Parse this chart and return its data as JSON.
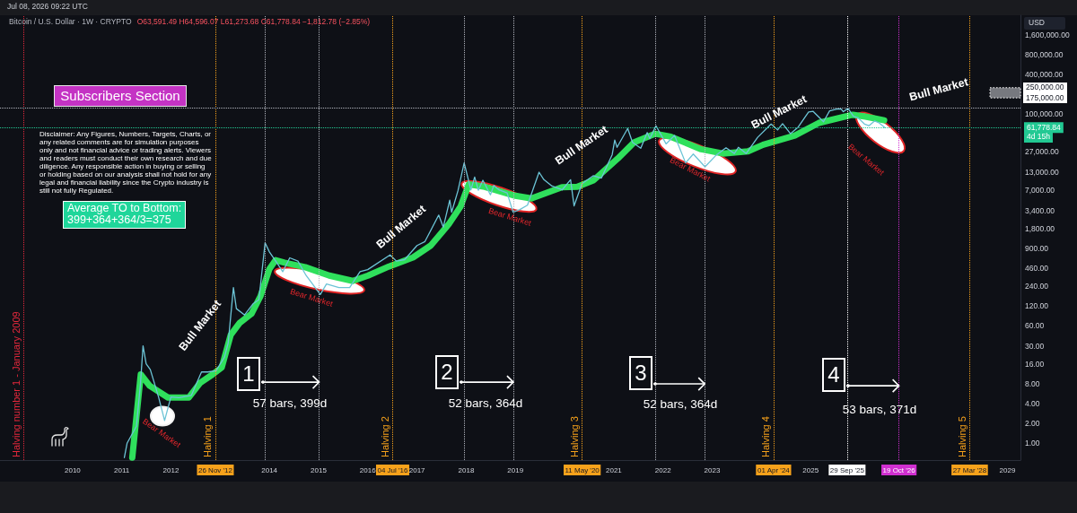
{
  "chart_data": {
    "type": "line",
    "title": "Bitcoin / U.S. Dollar · 1W · CRYPTO",
    "ylabel": "USD",
    "log": "y",
    "annotations": [
      "Jul 08, 2026 09:22 UTC",
      "O63,591.49 H64,596.07 L61,273.68 C61,778.84 −1,812.78 (−2.85%)",
      "Subscribers Section",
      "Disclaimer: Any Figures, Numbers, Targets, Charts, or any related comments are for simulation purposes only and not financial advice or trading alerts. Viewers and readers must conduct their own research and due diligence. Any responsible action in buying or selling or holding based on our analysis shall not hold for any legal and financial liability since the Crypto industry is still not fully Regulated.",
      "Average TO to Bottom:\n399+364+364/3=375",
      "4d 15h",
      {
        "text": "1",
        "x": "2015-01-05",
        "y": 8.4
      },
      {
        "text": "2",
        "x": "2018-12-17",
        "y": 8.4
      },
      {
        "text": "3",
        "x": "2022-11-07",
        "y": 7.9
      },
      {
        "text": "4",
        "x": "2026-10-19",
        "y": 7.4
      },
      "57 bars, 399d",
      "52 bars, 364d",
      "52 bars, 364d",
      "53 bars, 371d",
      "Bull Market",
      "Bull Market",
      "Bull Market",
      "Bull Market",
      "Bull Market",
      "Bear Market",
      "Bear Market",
      "Bear Market",
      "Bear Market",
      "Bear Market",
      {
        "text": "250,000.00",
        "x": "2028-12-16",
        "y": 250000
      },
      {
        "text": "175,000.00",
        "x": "2028-12-16",
        "y": 175000
      }
    ],
    "series": [
      {
        "color": "#2fe05c",
        "x": [
          "2011-03-20",
          "2011-05-22",
          "2011-07-27",
          "2011-12-10",
          "2012-05-12",
          "2012-08-05",
          "2012-11-05",
          "2013-01-12",
          "2013-03-20",
          "2013-05-26",
          "2013-08-21",
          "2013-10-27",
          "2014-01-01",
          "2014-02-16",
          "2014-04-23",
          "2014-09-24",
          "2015-03-21",
          "2015-09-12",
          "2016-01-04",
          "2016-06-06",
          "2016-12-03",
          "2017-04-13",
          "2017-08-24",
          "2017-11-20",
          "2018-01-20",
          "2018-05-19",
          "2019-01-01",
          "2019-04-30",
          "2019-12-13",
          "2020-04-05",
          "2020-08-04",
          "2021-01-31",
          "2021-05-31",
          "2021-11-06",
          "2022-02-28",
          "2022-10-12",
          "2023-03-21",
          "2023-09-24",
          "2024-01-15",
          "2024-09-06",
          "2025-03-04",
          "2025-11-10",
          "2026-02-12",
          "2026-07-01"
        ],
        "values": [
          0.6,
          11,
          7.4,
          4.9,
          4.9,
          8.2,
          11,
          14,
          44,
          67,
          92,
          170,
          440,
          600,
          550,
          470,
          350,
          290,
          350,
          480,
          660,
          1000,
          2100,
          3900,
          8500,
          7800,
          5700,
          5200,
          7700,
          7800,
          9800,
          21000,
          37000,
          50000,
          45000,
          29000,
          25000,
          27000,
          34000,
          47000,
          73000,
          97000,
          91000,
          80000
        ]
      },
      {
        "color": "#6cc4d6",
        "x": [
          "2011-01-20",
          "2011-02-10",
          "2011-04-20",
          "2011-05-20",
          "2011-06-08",
          "2011-07-01",
          "2011-08-01",
          "2011-09-01",
          "2011-10-01",
          "2011-11-15",
          "2012-01-01",
          "2012-03-01",
          "2012-06-01",
          "2012-08-15",
          "2012-10-01",
          "2012-12-01",
          "2013-02-01",
          "2013-03-01",
          "2013-04-09",
          "2013-05-01",
          "2013-07-01",
          "2013-09-01",
          "2013-10-15",
          "2013-11-30",
          "2014-01-01",
          "2014-02-25",
          "2014-04-10",
          "2014-06-01",
          "2014-08-01",
          "2014-10-01",
          "2015-01-14",
          "2015-03-01",
          "2015-06-01",
          "2015-08-20",
          "2015-11-05",
          "2016-01-01",
          "2016-06-15",
          "2016-08-01",
          "2016-10-01",
          "2017-01-01",
          "2017-03-01",
          "2017-06-11",
          "2017-07-15",
          "2017-09-01",
          "2017-09-15",
          "2017-11-01",
          "2017-12-17",
          "2018-02-05",
          "2018-03-05",
          "2018-04-01",
          "2018-05-05",
          "2018-06-30",
          "2018-07-25",
          "2018-09-01",
          "2018-11-01",
          "2018-12-15",
          "2019-02-01",
          "2019-04-01",
          "2019-06-26",
          "2019-08-01",
          "2019-09-30",
          "2019-12-15",
          "2020-02-15",
          "2020-03-12",
          "2020-05-10",
          "2020-08-01",
          "2020-10-01",
          "2020-12-20",
          "2021-01-08",
          "2021-01-25",
          "2021-04-14",
          "2021-05-20",
          "2021-07-20",
          "2021-09-06",
          "2021-09-25",
          "2021-11-10",
          "2022-01-24",
          "2022-03-28",
          "2022-06-18",
          "2022-08-14",
          "2022-11-09",
          "2023-01-30",
          "2023-04-14",
          "2023-06-15",
          "2023-07-15",
          "2023-09-11",
          "2023-12-05",
          "2024-03-14",
          "2024-05-01",
          "2024-06-07",
          "2024-08-05",
          "2024-10-01",
          "2024-12-17",
          "2025-01-20",
          "2025-04-07",
          "2025-05-22",
          "2025-07-14",
          "2025-08-14",
          "2025-09-01",
          "2025-10-06",
          "2025-11-15",
          "2025-12-20",
          "2026-02-05",
          "2026-03-10",
          "2026-04-20",
          "2026-05-20",
          "2026-06-20",
          "2026-07-06"
        ],
        "values": [
          0.6,
          1,
          1.8,
          8,
          30,
          16,
          13,
          8,
          5,
          2.2,
          5,
          4.9,
          5.3,
          12,
          12,
          12.5,
          20,
          33,
          230,
          110,
          88,
          130,
          150,
          1100,
          800,
          550,
          400,
          650,
          580,
          350,
          180,
          260,
          230,
          230,
          400,
          430,
          720,
          580,
          610,
          1000,
          1150,
          2900,
          1900,
          4900,
          3200,
          6800,
          18000,
          7000,
          11000,
          6900,
          9800,
          5900,
          8200,
          7000,
          6300,
          3200,
          3500,
          4100,
          13000,
          10000,
          8000,
          7000,
          10000,
          4000,
          8700,
          11500,
          10600,
          24000,
          40000,
          31000,
          60000,
          37000,
          30000,
          52000,
          42000,
          66000,
          35000,
          47000,
          18000,
          24500,
          15700,
          23500,
          30500,
          25000,
          31000,
          25000,
          44000,
          70000,
          57000,
          71000,
          50000,
          63000,
          107000,
          109000,
          76000,
          111000,
          118000,
          119000,
          108000,
          121000,
          92000,
          87000,
          70000,
          66000,
          78000,
          74000,
          66000,
          61778.84
        ]
      },
      {
        "type": "bar",
        "color": "#77797f",
        "x": [
          "2028-12-16"
        ],
        "base": [
          175000
        ],
        "values": [
          75000
        ]
      }
    ],
    "xlim": [
      "2008-07-11",
      "2029-04-08"
    ],
    "xticks": [
      "2010",
      "2011",
      "2012",
      {
        "value": "2012-11-26",
        "label": "26 Nov '12"
      },
      "2014",
      "2015",
      "2016",
      {
        "value": "2016-07-04",
        "label": "04 Jul '16"
      },
      "2017",
      "2018",
      "2019",
      {
        "value": "2020-05-11",
        "label": "11 May '20"
      },
      "2021",
      "2022",
      "2023",
      {
        "value": "2024-04-01",
        "label": "01 Apr '24"
      },
      "2025",
      {
        "value": "2025-09-29",
        "label": "29 Sep '25"
      },
      {
        "value": "2026-10-19",
        "label": "19 Oct '26"
      },
      {
        "value": "2028-03-27",
        "label": "27 Mar '28"
      },
      "2029"
    ],
    "ylim": [
      0.55,
      3150000
    ],
    "yticks": [
      {
        "value": 1,
        "label": "1.00"
      },
      {
        "value": 2,
        "label": "2.00"
      },
      {
        "value": 4,
        "label": "4.00"
      },
      {
        "value": 8,
        "label": "8.00"
      },
      {
        "value": 16,
        "label": "16.00"
      },
      {
        "value": 30,
        "label": "30.00"
      },
      {
        "value": 60,
        "label": "60.00"
      },
      {
        "value": 120,
        "label": "120.00"
      },
      {
        "value": 240,
        "label": "240.00"
      },
      {
        "value": 460,
        "label": "460.00"
      },
      {
        "value": 900,
        "label": "900.00"
      },
      {
        "value": 1800,
        "label": "1,800.00"
      },
      {
        "value": 3400,
        "label": "3,400.00"
      },
      {
        "value": 7000,
        "label": "7,000.00"
      },
      {
        "value": 13000,
        "label": "13,000.00"
      },
      {
        "value": 27000,
        "label": "27,000.00"
      },
      {
        "value": 100000,
        "label": "100,000.00"
      },
      {
        "value": 400000,
        "label": "400,000.00"
      },
      {
        "value": 800000,
        "label": "800,000.00"
      },
      {
        "value": 1600000,
        "label": "1,600,000.00"
      }
    ],
    "ref_lines": [
      {
        "axis": "x",
        "value": "2009-01",
        "label": "Halving number 1 - January 2009",
        "color": "#e5283c",
        "line_style": "dotted"
      },
      {
        "axis": "x",
        "value": "2012-11-26",
        "label": "Halving 1",
        "color": "#f7a21b",
        "line_style": "dotted"
      },
      {
        "axis": "x",
        "value": "2016-07-04",
        "label": "Halving 2",
        "color": "#f7a21b",
        "line_style": "dotted"
      },
      {
        "axis": "x",
        "value": "2020-05-11",
        "label": "Halving 3",
        "color": "#f7a21b",
        "line_style": "dotted"
      },
      {
        "axis": "x",
        "value": "2024-04-01",
        "label": "Halving 4",
        "color": "#f7a21b",
        "line_style": "dotted"
      },
      {
        "axis": "x",
        "value": "2028-03-27",
        "label": "Halving 5",
        "color": "#f7a21b",
        "line_style": "dotted"
      },
      {
        "axis": "x",
        "value": "2013-12-02",
        "color": "#b2b5be",
        "line_style": "dotted"
      },
      {
        "axis": "x",
        "value": "2015-01-05",
        "color": "#b2b5be",
        "line_style": "dotted"
      },
      {
        "axis": "x",
        "value": "2017-12-18",
        "color": "#b2b5be",
        "line_style": "dotted"
      },
      {
        "axis": "x",
        "value": "2018-12-17",
        "color": "#b2b5be",
        "line_style": "dotted"
      },
      {
        "axis": "x",
        "value": "2021-11-08",
        "color": "#b2b5be",
        "line_style": "dotted"
      },
      {
        "axis": "x",
        "value": "2022-11-07",
        "color": "#b2b5be",
        "line_style": "dotted"
      },
      {
        "axis": "x",
        "value": "2025-09-29",
        "color": "#ffffff",
        "line_style": "dotted"
      },
      {
        "axis": "x",
        "value": "2026-10-19",
        "color": "#d02fd0",
        "line_style": "dotted"
      },
      {
        "axis": "y",
        "value": 61778.84,
        "label": "61,778.84",
        "color": "#22c993",
        "line_style": "dotted"
      },
      {
        "axis": "y",
        "value": 123000,
        "color": "#b2b5be",
        "line_style": "dotted"
      }
    ]
  }
}
